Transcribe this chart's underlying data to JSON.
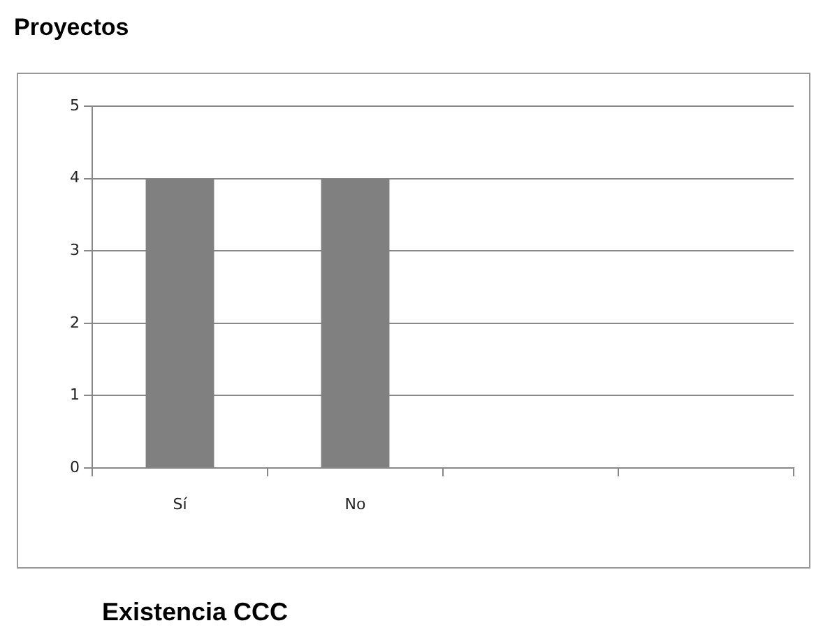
{
  "chart_data": {
    "type": "bar",
    "title": "Proyectos",
    "xlabel": "Existencia CCC",
    "categories": [
      "Sí",
      "No",
      null,
      null
    ],
    "series": [
      {
        "color": "#808080",
        "values": [
          4,
          4,
          null,
          null
        ]
      }
    ],
    "ylim": [
      0,
      5
    ],
    "yticks": [
      0,
      1,
      2,
      3,
      4,
      5
    ],
    "grid": "y",
    "legend": false
  }
}
